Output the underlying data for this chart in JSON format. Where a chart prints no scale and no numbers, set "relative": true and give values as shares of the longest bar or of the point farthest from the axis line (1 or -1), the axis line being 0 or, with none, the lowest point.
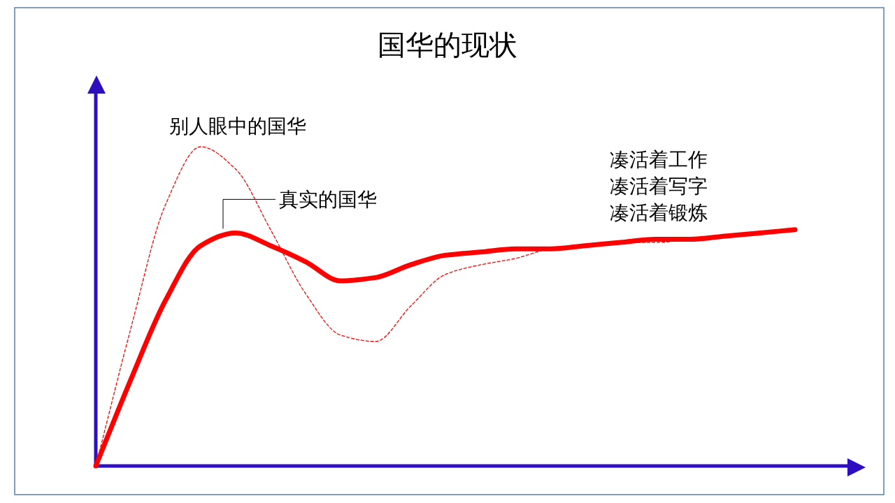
{
  "chart_data": {
    "type": "line",
    "title": "国华的现状",
    "relative": true,
    "categories": [
      null,
      null,
      null,
      null,
      null,
      null,
      null,
      null,
      null,
      null,
      null,
      null,
      null,
      null,
      null,
      null,
      null,
      null,
      null,
      null,
      null
    ],
    "series": [
      {
        "name": "别人眼中的国华",
        "color": "#ff0000",
        "line_style": "dashed",
        "values": [
          0,
          0.43,
          0.82,
          1,
          0.93,
          0.74,
          0.54,
          0.41,
          0.39,
          0.5,
          0.6,
          0.63,
          0.65,
          0.68,
          0.69,
          0.7,
          0.7,
          0.71,
          0.72,
          0.73,
          0.74
        ]
      },
      {
        "name": "真实的国华",
        "color": "#ff0000",
        "line_style": "solid",
        "values": [
          0,
          0.27,
          0.52,
          0.69,
          0.73,
          0.69,
          0.64,
          0.58,
          0.59,
          0.63,
          0.66,
          0.67,
          0.68,
          0.68,
          0.69,
          0.7,
          0.71,
          0.71,
          0.72,
          0.73,
          0.74
        ]
      }
    ],
    "annotations": [
      "凑活着工作",
      "凑活着写字",
      "凑活着锻炼"
    ]
  }
}
